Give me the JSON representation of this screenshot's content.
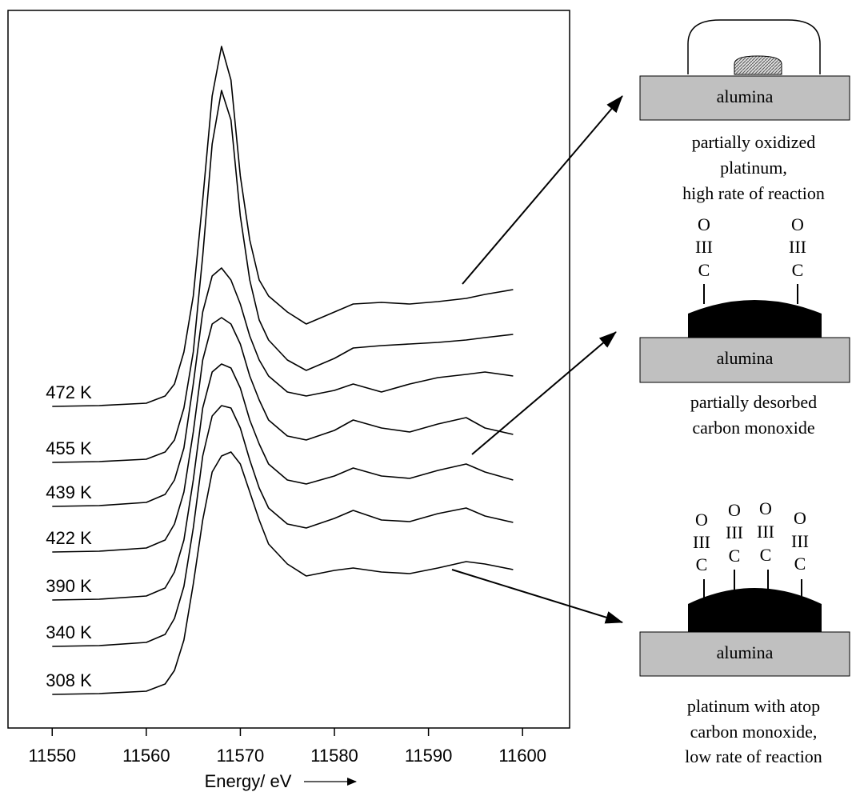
{
  "chart_data": {
    "type": "line",
    "xlabel": "Energy/ eV",
    "xlim": [
      11545.3,
      11605
    ],
    "xticks": [
      11550,
      11560,
      11570,
      11580,
      11590,
      11600
    ],
    "ylim": [
      0,
      9
    ],
    "x": [
      11550,
      11555,
      11560,
      11562,
      11563,
      11564,
      11565,
      11566,
      11567,
      11568,
      11569,
      11570,
      11571,
      11572,
      11573,
      11575,
      11577,
      11580,
      11582,
      11585,
      11588,
      11591,
      11594,
      11596,
      11599
    ],
    "series": [
      {
        "name": "472 K",
        "color": "#000000",
        "values": [
          4.02,
          4.03,
          4.06,
          4.15,
          4.3,
          4.7,
          5.4,
          6.6,
          7.9,
          8.52,
          8.1,
          6.9,
          6.1,
          5.6,
          5.4,
          5.2,
          5.05,
          5.2,
          5.3,
          5.32,
          5.3,
          5.33,
          5.37,
          5.42,
          5.48
        ]
      },
      {
        "name": "455 K",
        "color": "#000000",
        "values": [
          3.32,
          3.33,
          3.36,
          3.45,
          3.6,
          4.0,
          4.7,
          5.9,
          7.3,
          7.97,
          7.6,
          6.4,
          5.6,
          5.1,
          4.85,
          4.6,
          4.47,
          4.62,
          4.75,
          4.78,
          4.8,
          4.82,
          4.85,
          4.88,
          4.92
        ]
      },
      {
        "name": "439 K",
        "color": "#000000",
        "values": [
          2.77,
          2.78,
          2.82,
          2.92,
          3.1,
          3.5,
          4.3,
          5.2,
          5.65,
          5.75,
          5.6,
          5.3,
          4.9,
          4.6,
          4.4,
          4.2,
          4.15,
          4.22,
          4.3,
          4.2,
          4.3,
          4.38,
          4.42,
          4.45,
          4.4
        ]
      },
      {
        "name": "422 K",
        "color": "#000000",
        "values": [
          2.2,
          2.21,
          2.25,
          2.35,
          2.55,
          2.95,
          3.7,
          4.6,
          5.05,
          5.13,
          5.05,
          4.8,
          4.4,
          4.1,
          3.85,
          3.65,
          3.6,
          3.72,
          3.85,
          3.75,
          3.7,
          3.8,
          3.88,
          3.75,
          3.67
        ]
      },
      {
        "name": "390 K",
        "color": "#000000",
        "values": [
          1.6,
          1.61,
          1.65,
          1.75,
          1.95,
          2.35,
          3.1,
          4.0,
          4.45,
          4.55,
          4.5,
          4.25,
          3.85,
          3.55,
          3.3,
          3.1,
          3.05,
          3.15,
          3.25,
          3.15,
          3.12,
          3.22,
          3.3,
          3.2,
          3.1
        ]
      },
      {
        "name": "340 K",
        "color": "#000000",
        "values": [
          1.02,
          1.03,
          1.07,
          1.17,
          1.37,
          1.77,
          2.5,
          3.4,
          3.9,
          4.03,
          4.0,
          3.75,
          3.35,
          3.0,
          2.75,
          2.55,
          2.5,
          2.62,
          2.72,
          2.6,
          2.58,
          2.68,
          2.75,
          2.65,
          2.57
        ]
      },
      {
        "name": "308 K",
        "color": "#000000",
        "values": [
          0.42,
          0.43,
          0.46,
          0.55,
          0.72,
          1.1,
          1.8,
          2.6,
          3.2,
          3.4,
          3.45,
          3.3,
          2.95,
          2.6,
          2.3,
          2.05,
          1.9,
          1.97,
          2.0,
          1.95,
          1.93,
          2.0,
          2.08,
          2.05,
          1.98
        ]
      }
    ]
  },
  "diagrams": [
    {
      "support": "alumina",
      "caption": [
        "partially oxidized",
        "platinum,",
        "high rate of reaction"
      ],
      "molecules": []
    },
    {
      "support": "alumina",
      "caption": [
        "partially desorbed",
        "carbon monoxide"
      ],
      "molecules": [
        [
          "O",
          "III",
          "C"
        ],
        [
          "O",
          "III",
          "C"
        ]
      ]
    },
    {
      "support": "alumina",
      "caption": [
        "platinum with atop",
        "carbon monoxide,",
        "low rate of reaction"
      ],
      "molecules": [
        [
          "O",
          "III",
          "C"
        ],
        [
          "O",
          "III",
          "C"
        ],
        [
          "O",
          "III",
          "C"
        ],
        [
          "O",
          "III",
          "C"
        ]
      ]
    }
  ]
}
